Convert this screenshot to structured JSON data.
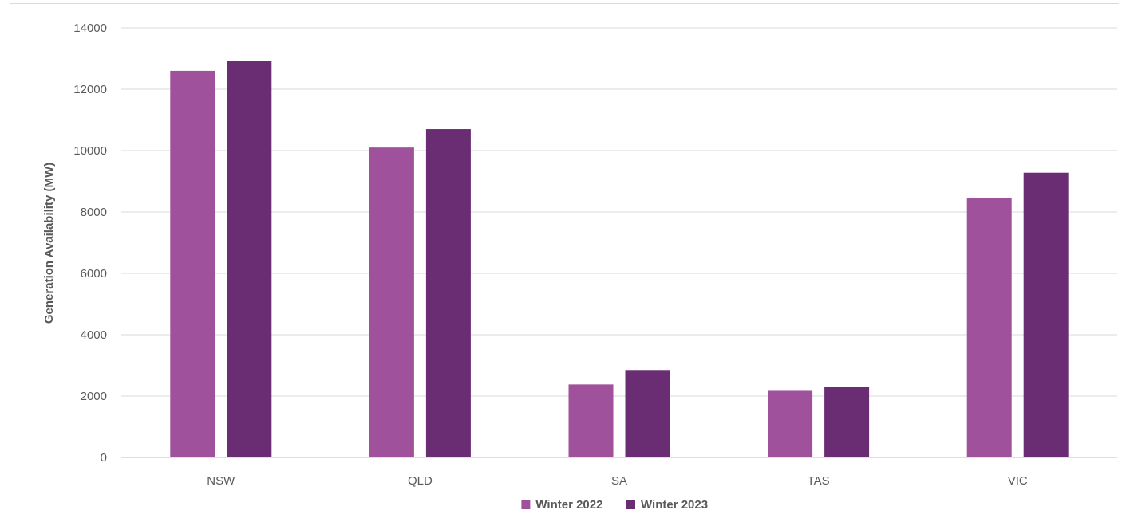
{
  "chart_data": {
    "type": "bar",
    "categories": [
      "NSW",
      "QLD",
      "SA",
      "TAS",
      "VIC"
    ],
    "series": [
      {
        "name": "Winter 2022",
        "values": [
          12600,
          10100,
          2380,
          2170,
          8450
        ],
        "color": "#a0519c"
      },
      {
        "name": "Winter 2023",
        "values": [
          12920,
          10700,
          2850,
          2300,
          9280
        ],
        "color": "#6a2d74"
      }
    ],
    "title": "",
    "xlabel": "",
    "ylabel": "Generation Availability (MW)",
    "ylim": [
      0,
      14000
    ],
    "yticks": [
      "0",
      "2000",
      "4000",
      "6000",
      "8000",
      "10000",
      "12000",
      "14000"
    ],
    "grid": true,
    "legend_position": "bottom-center"
  }
}
